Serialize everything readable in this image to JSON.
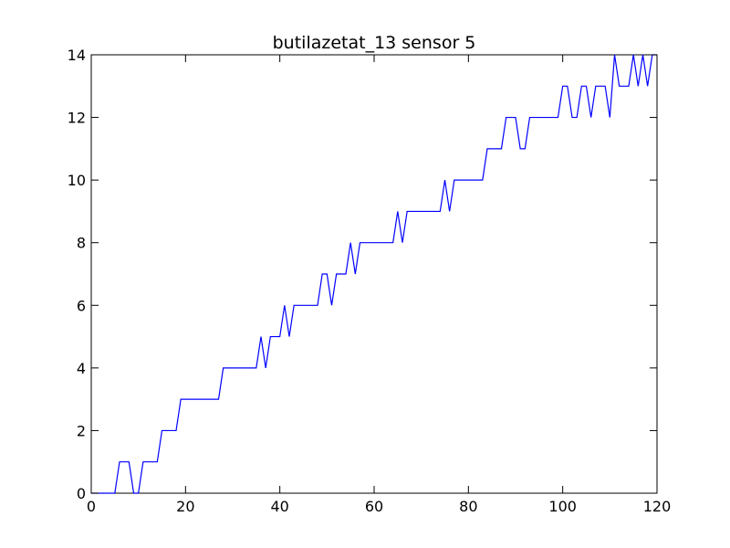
{
  "chart_data": {
    "type": "line",
    "title": "butilazetat_13 sensor 5",
    "xlabel": "",
    "ylabel": "",
    "xlim": [
      0,
      120
    ],
    "ylim": [
      0,
      14
    ],
    "xticks": [
      0,
      20,
      40,
      60,
      80,
      100,
      120
    ],
    "yticks": [
      0,
      2,
      4,
      6,
      8,
      10,
      12,
      14
    ],
    "grid": false,
    "line_color": "#0000ff",
    "series": [
      {
        "x": [
          0,
          5,
          6,
          8,
          9,
          10,
          11,
          14,
          15,
          18,
          19,
          27,
          28,
          35,
          36,
          37,
          38,
          40,
          41,
          42,
          43,
          48,
          49,
          50,
          51,
          52,
          54,
          55,
          56,
          57,
          64,
          65,
          66,
          67,
          74,
          75,
          76,
          77,
          83,
          84,
          87,
          88,
          90,
          91,
          92,
          93,
          99,
          100,
          101,
          102,
          103,
          104,
          105,
          106,
          107,
          109,
          110,
          111,
          112,
          114,
          115,
          116,
          117,
          118,
          119,
          120
        ],
        "y": [
          0,
          0,
          1,
          1,
          0,
          0,
          1,
          1,
          2,
          2,
          3,
          3,
          4,
          4,
          5,
          4,
          5,
          5,
          6,
          5,
          6,
          6,
          7,
          7,
          6,
          7,
          7,
          8,
          7,
          8,
          8,
          9,
          8,
          9,
          9,
          10,
          9,
          10,
          10,
          11,
          11,
          12,
          12,
          11,
          11,
          12,
          12,
          13,
          13,
          12,
          12,
          13,
          13,
          12,
          13,
          13,
          12,
          14,
          13,
          13,
          14,
          13,
          14,
          13,
          14,
          14
        ]
      }
    ]
  }
}
